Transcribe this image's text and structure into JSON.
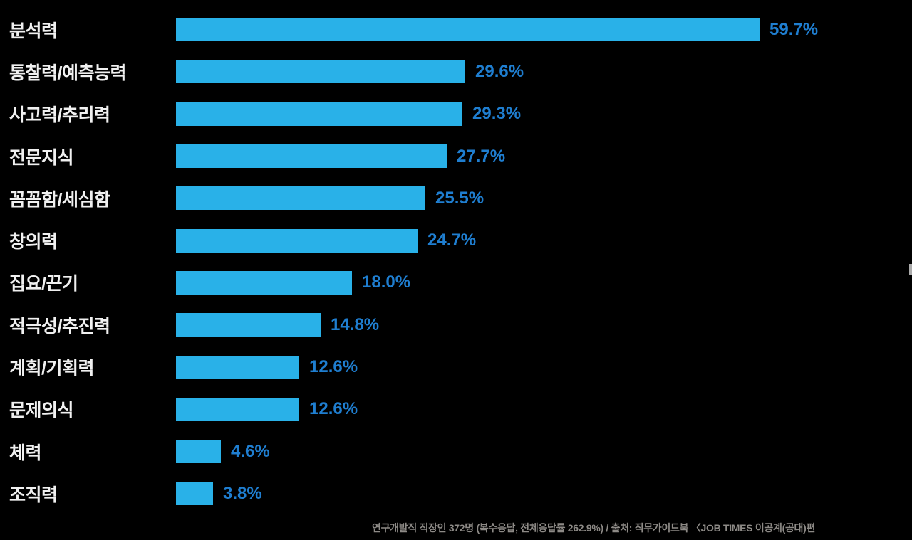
{
  "page": {
    "background_color": "#000000"
  },
  "chart_data": {
    "type": "bar",
    "orientation": "horizontal",
    "title": "",
    "xlabel": "",
    "ylabel": "",
    "xlim": [
      0,
      59.7
    ],
    "grid": false,
    "legend": false,
    "bar_color": "#29b1e8",
    "value_label_color": "#1f7ed0",
    "category_label_color": "#f0f0f0",
    "categories": [
      "분석력",
      "통찰력/예측능력",
      "사고력/추리력",
      "전문지식",
      "꼼꼼함/세심함",
      "창의력",
      "집요/끈기",
      "적극성/추진력",
      "계획/기획력",
      "문제의식",
      "체력",
      "조직력"
    ],
    "values": [
      59.7,
      29.6,
      29.3,
      27.7,
      25.5,
      24.7,
      18.0,
      14.8,
      12.6,
      12.6,
      4.6,
      3.8
    ],
    "value_labels": [
      "59.7%",
      "29.6%",
      "29.3%",
      "27.7%",
      "25.5%",
      "24.7%",
      "18.0%",
      "14.8%",
      "12.6%",
      "12.6%",
      "4.6%",
      "3.8%"
    ]
  },
  "footer": {
    "source_note": "연구개발직 직장인 372명 (복수응답, 전체응답률 262.9%) / 출처: 직무가이드북 〈JOB TIMES 이공계(공대)편"
  }
}
